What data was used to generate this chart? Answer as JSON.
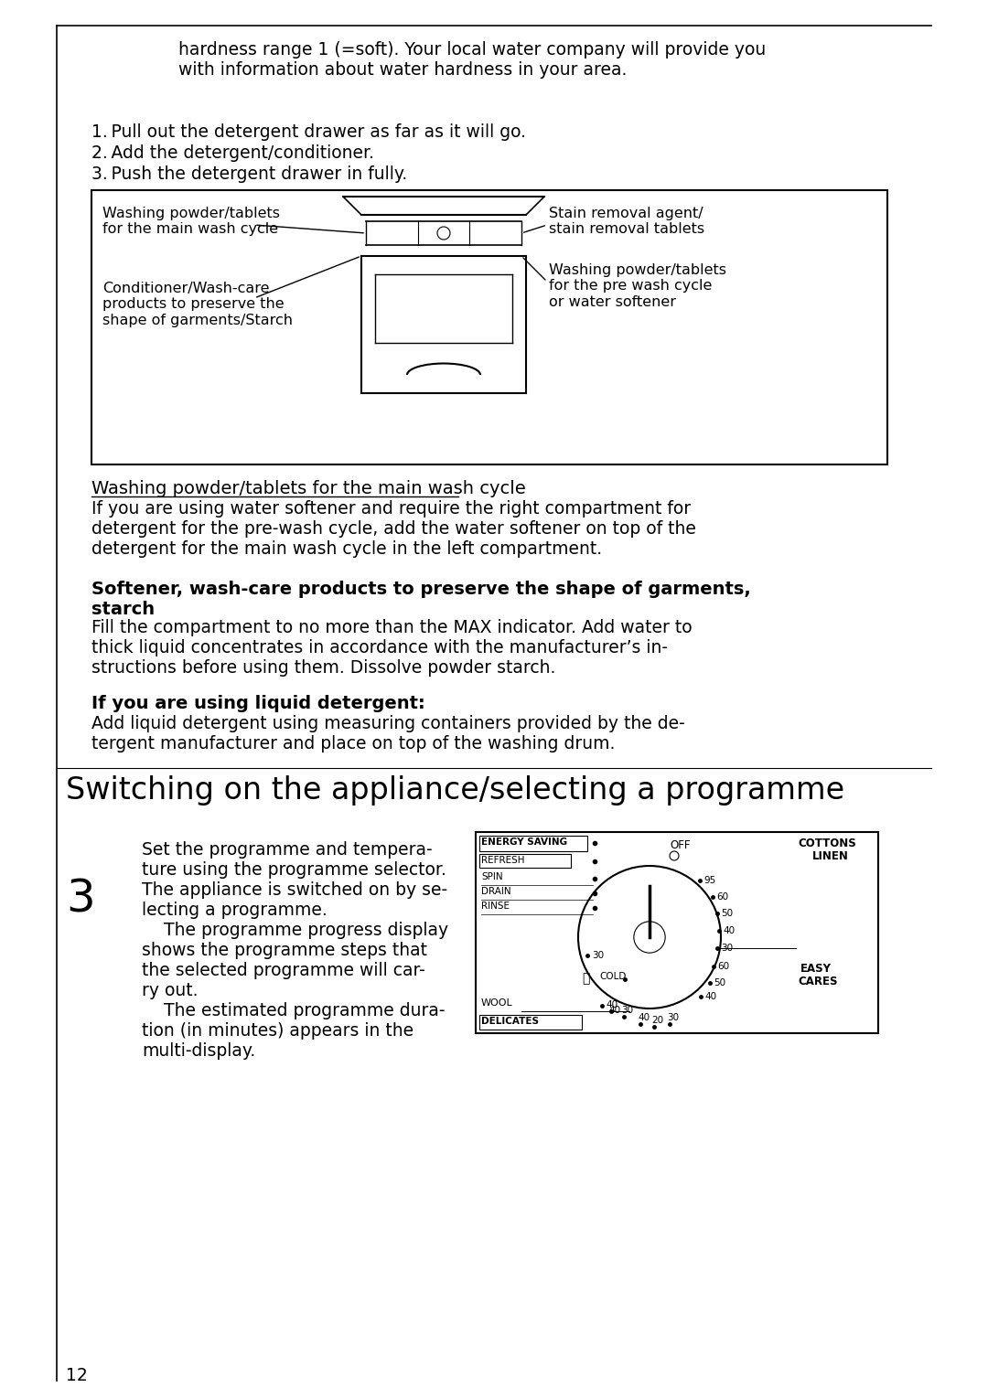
{
  "bg_color": "#ffffff",
  "page_number": "12",
  "top_indent_text": "hardness range 1 (=soft). Your local water company will provide you\nwith information about water hardness in your area.",
  "steps": [
    "1. Pull out the detergent drawer as far as it will go.",
    "2. Add the detergent/conditioner.",
    "3. Push the detergent drawer in fully."
  ],
  "drawer_labels_left": [
    "Washing powder/tablets\nfor the main wash cycle",
    "Conditioner/Wash-care\nproducts to preserve the\nshape of garments/Starch"
  ],
  "drawer_labels_right": [
    "Stain removal agent/\nstain removal tablets",
    "Washing powder/tablets\nfor the pre wash cycle\nor water softener"
  ],
  "section1_title": "Washing powder/tablets for the main wash cycle",
  "section1_body": "If you are using water softener and require the right compartment for\ndetergent for the pre-wash cycle, add the water softener on top of the\ndetergent for the main wash cycle in the left compartment.",
  "section2_title": "Softener, wash-care products to preserve the shape of garments,\nstarch",
  "section2_body": "Fill the compartment to no more than the MAX indicator. Add water to\nthick liquid concentrates in accordance with the manufacturer’s in-\nstructions before using them. Dissolve powder starch.",
  "section3_title": "If you are using liquid detergent:",
  "section3_body": "Add liquid detergent using measuring containers provided by the de-\ntergent manufacturer and place on top of the washing drum.",
  "big_title": "Switching on the appliance/selecting a programme",
  "step3_num": "3",
  "step3_left1": "Set the programme and tempera-",
  "step3_left2": "ture using the programme selector.",
  "step3_body_lines": [
    "The appliance is switched on by se-",
    "lecting a programme.",
    "    The programme progress display",
    "shows the programme steps that",
    "the selected programme will car-",
    "ry out.",
    "    The estimated programme dura-",
    "tion (in minutes) appears in the",
    "multi-display."
  ],
  "dial_progs_left": [
    "ENERGY SAVING",
    "REFRESH",
    "SPIN",
    "DRAIN",
    "RINSE"
  ],
  "dial_off": "OFF",
  "dial_cottons": [
    "COTTONS",
    "LINEN"
  ],
  "dial_easy_cares": [
    "EASY",
    "CARES"
  ],
  "dial_cold": "COLD",
  "dial_wool": "WOOL",
  "dial_delicates": "DELICATES"
}
